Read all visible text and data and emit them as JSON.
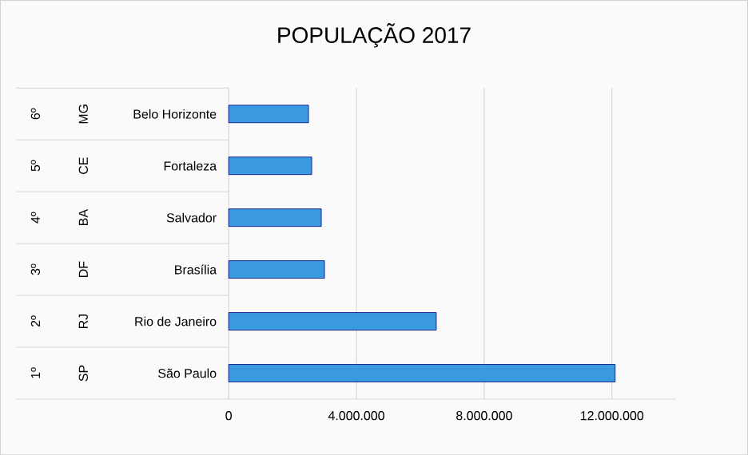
{
  "chart_data": {
    "type": "bar",
    "orientation": "horizontal",
    "title": "POPULAÇÃO 2017",
    "categories": [
      "Belo Horizonte",
      "Fortaleza",
      "Salvador",
      "Brasília",
      "Rio de Janeiro",
      "São Paulo"
    ],
    "values": [
      2500000,
      2600000,
      2900000,
      3000000,
      6500000,
      12100000
    ],
    "color": "#3a9ae0",
    "xlim": [
      0,
      14000000
    ],
    "xticks": [
      0,
      {
        "value": 4000000,
        "label": "4.000.000"
      },
      {
        "value": 8000000,
        "label": "8.000.000"
      },
      {
        "value": 12000000,
        "label": "12.000.000"
      }
    ],
    "grid": "x",
    "annotations": [
      "6º",
      "MG",
      "5º",
      "CE",
      "4º",
      "BA",
      "3º",
      "DF",
      "2º",
      "RJ",
      "1º",
      "SP"
    ]
  }
}
